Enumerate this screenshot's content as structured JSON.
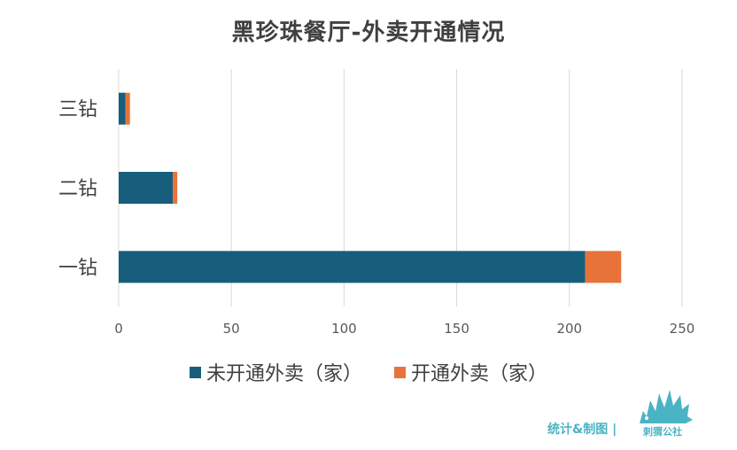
{
  "chart_data": {
    "type": "bar",
    "orientation": "horizontal",
    "stacked": true,
    "title": "黑珍珠餐厅-外卖开通情况",
    "categories": [
      "三钻",
      "二钻",
      "一钻"
    ],
    "series": [
      {
        "name": "未开通外卖（家）",
        "values": [
          3,
          24,
          207
        ],
        "color": "#175e7d"
      },
      {
        "name": "开通外卖（家）",
        "values": [
          2,
          2,
          16
        ],
        "color": "#e8733a"
      }
    ],
    "xlim": [
      0,
      250
    ],
    "xticks": [
      0,
      50,
      100,
      150,
      200,
      250
    ],
    "grid": true,
    "legend_position": "bottom"
  },
  "footer": {
    "credit": "统计&制图 |",
    "brand": "刺猬公社",
    "brand_icon": "hedgehog-icon"
  }
}
